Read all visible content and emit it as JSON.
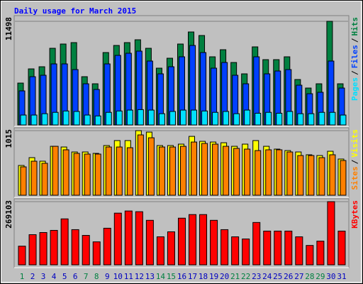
{
  "chart_data": {
    "type": "bar",
    "title": "Daily usage for March 2015",
    "categories": [
      "1",
      "2",
      "3",
      "4",
      "5",
      "6",
      "7",
      "8",
      "9",
      "10",
      "11",
      "12",
      "13",
      "14",
      "15",
      "16",
      "17",
      "18",
      "19",
      "20",
      "21",
      "22",
      "23",
      "24",
      "25",
      "26",
      "27",
      "28",
      "29",
      "30",
      "31"
    ],
    "category_colors": [
      "#008040",
      "#0000c0",
      "#0000c0",
      "#0000c0",
      "#0000c0",
      "#0000c0",
      "#008040",
      "#008040",
      "#0000c0",
      "#0000c0",
      "#0000c0",
      "#0000c0",
      "#0000c0",
      "#008040",
      "#008040",
      "#0000c0",
      "#0000c0",
      "#0000c0",
      "#0000c0",
      "#0000c0",
      "#008040",
      "#008040",
      "#0000c0",
      "#0000c0",
      "#0000c0",
      "#0000c0",
      "#0000c0",
      "#008040",
      "#008040",
      "#0000c0",
      "#0000c0"
    ],
    "separator": "/",
    "panels": [
      {
        "ylim": [
          0,
          11498
        ],
        "yticks": [
          11498
        ],
        "grid": true,
        "series": [
          {
            "name": "Hits",
            "color": "#008040",
            "values": [
              4646,
              6221,
              6458,
              8505,
              8978,
              9135,
              5355,
              4568,
              8033,
              8820,
              9135,
              9450,
              8505,
              6300,
              7403,
              8978,
              10316,
              9923,
              7560,
              8348,
              6930,
              5670,
              8663,
              7245,
              7245,
              7560,
              5040,
              4095,
              4568,
              11498,
              4568
            ]
          },
          {
            "name": "Files",
            "color": "#0040ff",
            "values": [
              3780,
              5355,
              5513,
              6773,
              6773,
              6143,
              4568,
              3938,
              6773,
              7718,
              7954,
              8190,
              7088,
              5670,
              6458,
              7560,
              8820,
              8033,
              6300,
              6930,
              5513,
              4568,
              7560,
              5670,
              5985,
              6143,
              4410,
              3465,
              3623,
              7088,
              4095
            ]
          },
          {
            "name": "Pages",
            "color": "#00e0ff",
            "values": [
              1100,
              1100,
              1250,
              1400,
              1550,
              1500,
              1100,
              1000,
              1400,
              1550,
              1650,
              1700,
              1650,
              1250,
              1500,
              1650,
              1650,
              1550,
              1400,
              1500,
              1250,
              1650,
              1300,
              1400,
              1300,
              1500,
              1250,
              1250,
              1400,
              1400,
              1100
            ]
          }
        ]
      },
      {
        "ylim": [
          0,
          1015
        ],
        "yticks": [
          1015
        ],
        "grid": true,
        "series": [
          {
            "name": "Visits",
            "color": "#ffff00",
            "values": [
              468,
              591,
              535,
              769,
              758,
              680,
              680,
              658,
              781,
              859,
              859,
              1015,
              992,
              781,
              781,
              803,
              925,
              847,
              836,
              825,
              769,
              803,
              859,
              769,
              725,
              702,
              680,
              636,
              624,
              691,
              569
            ]
          },
          {
            "name": "Sites",
            "color": "#ff8000",
            "values": [
              446,
              535,
              502,
              769,
              714,
              658,
              647,
              647,
              758,
              758,
              747,
              948,
              903,
              758,
              758,
              769,
              836,
              814,
              803,
              769,
              736,
              725,
              702,
              714,
              714,
              680,
              624,
              624,
              591,
              636,
              546
            ]
          }
        ]
      },
      {
        "ylim": [
          0,
          269103
        ],
        "yticks": [
          269103
        ],
        "grid": true,
        "series": [
          {
            "name": "KBytes",
            "color": "#ff0000",
            "values": [
              79508,
              128436,
              137610,
              146784,
              195712,
              149842,
              125378,
              97856,
              155958,
              220176,
              229350,
              226292,
              189596,
              119262,
              140668,
              198770,
              214060,
              214060,
              189596,
              149842,
              119262,
              110088,
              180422,
              143726,
              143726,
              143726,
              119262,
              82566,
              100914,
              269103,
              143726
            ]
          }
        ]
      }
    ]
  }
}
